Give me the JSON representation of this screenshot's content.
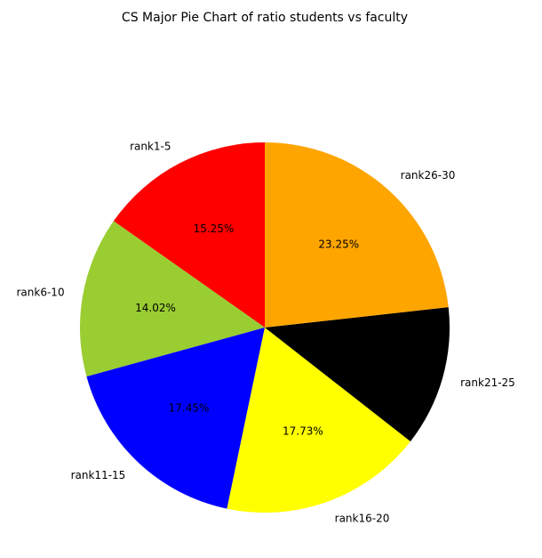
{
  "chart_data": {
    "type": "pie",
    "title": "CS Major Pie Chart of ratio students vs faculty",
    "start_angle_deg": 90,
    "direction": "counterclockwise",
    "legend": "none",
    "slices": [
      {
        "label": "rank1-5",
        "value": 15.25,
        "pct_label": "15.25%",
        "color": "#ff0000"
      },
      {
        "label": "rank6-10",
        "value": 14.02,
        "pct_label": "14.02%",
        "color": "#9acd32"
      },
      {
        "label": "rank11-15",
        "value": 17.45,
        "pct_label": "17.45%",
        "color": "#0000ff"
      },
      {
        "label": "rank16-20",
        "value": 17.73,
        "pct_label": "17.73%",
        "color": "#ffff00"
      },
      {
        "label": "rank21-25",
        "value": 12.3,
        "pct_label": "",
        "color": "#000000"
      },
      {
        "label": "rank26-30",
        "value": 23.25,
        "pct_label": "23.25%",
        "color": "#ffa500"
      }
    ]
  }
}
